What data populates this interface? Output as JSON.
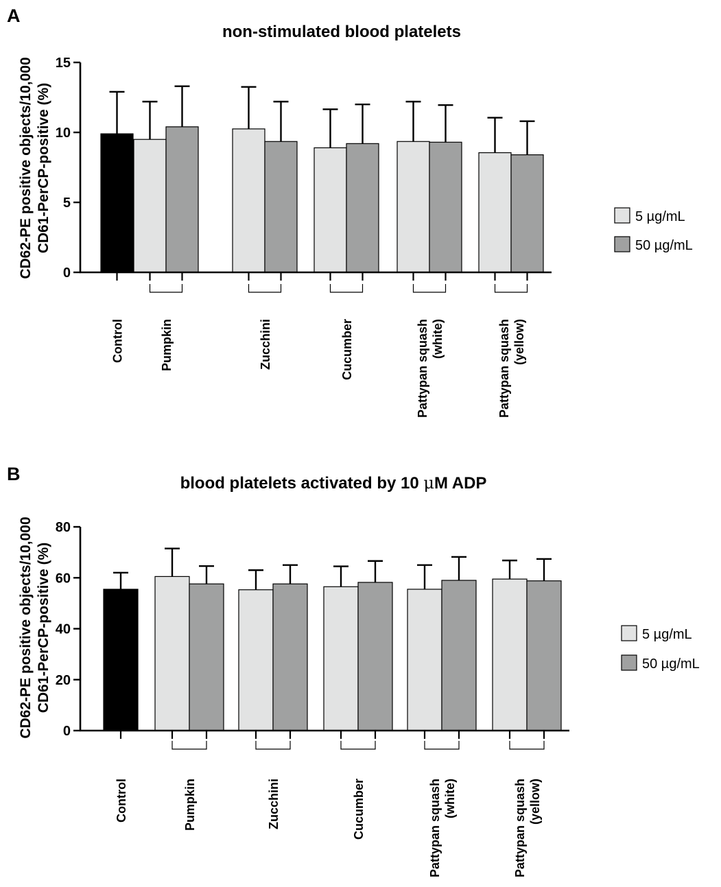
{
  "chart_data": [
    {
      "panel_label": "A",
      "type": "bar",
      "title": "non-stimulated blood platelets",
      "ylabel_line1": "CD62-PE positive objects/10,000",
      "ylabel_line2": "CD61-PerCP-positive (%)",
      "ylim": [
        0,
        15
      ],
      "yticks": [
        0,
        5,
        10,
        15
      ],
      "control": {
        "label": "Control",
        "value": 9.9,
        "error": 3.0,
        "color": "#000000"
      },
      "categories": [
        {
          "line1": "Pumpkin",
          "line2": ""
        },
        {
          "line1": "Zucchini",
          "line2": ""
        },
        {
          "line1": "Cucumber",
          "line2": ""
        },
        {
          "line1": "Pattypan squash",
          "line2": "(white)"
        },
        {
          "line1": "Pattypan squash",
          "line2": "(yellow)"
        }
      ],
      "series": [
        {
          "name": "5 µg/mL",
          "color": "#e2e3e3",
          "values": [
            9.5,
            10.25,
            8.9,
            9.35,
            8.55
          ],
          "errors": [
            2.7,
            3.0,
            2.75,
            2.85,
            2.5
          ]
        },
        {
          "name": "50 µg/mL",
          "color": "#a0a1a1",
          "values": [
            10.4,
            9.35,
            9.2,
            9.3,
            8.4
          ],
          "errors": [
            2.9,
            2.85,
            2.8,
            2.65,
            2.4
          ]
        }
      ],
      "legend": "right",
      "grid": false
    },
    {
      "panel_label": "B",
      "type": "bar",
      "title_pre": "blood platelets activated by 10 ",
      "title_mu": "μ",
      "title_post": "M ADP",
      "ylabel_line1": "CD62-PE positive objects/10,000",
      "ylabel_line2": "CD61-PerCP-positive (%)",
      "ylim": [
        0,
        80
      ],
      "yticks": [
        0,
        20,
        40,
        60,
        80
      ],
      "control": {
        "label": "Control",
        "value": 55.5,
        "error": 6.5,
        "color": "#000000"
      },
      "categories": [
        {
          "line1": "Pumpkin",
          "line2": ""
        },
        {
          "line1": "Zucchini",
          "line2": ""
        },
        {
          "line1": "Cucumber",
          "line2": ""
        },
        {
          "line1": "Pattypan squash",
          "line2": "(white)"
        },
        {
          "line1": "Pattypan squash",
          "line2": "(yellow)"
        }
      ],
      "series": [
        {
          "name": "5 µg/mL",
          "color": "#e2e3e3",
          "values": [
            60.5,
            55.3,
            56.5,
            55.5,
            59.5
          ],
          "errors": [
            11.0,
            7.7,
            8.0,
            9.5,
            7.3
          ]
        },
        {
          "name": "50 µg/mL",
          "color": "#a0a1a1",
          "values": [
            57.6,
            57.6,
            58.2,
            59.0,
            58.8
          ],
          "errors": [
            7.0,
            7.4,
            8.4,
            9.2,
            8.6
          ]
        }
      ],
      "legend": "right",
      "grid": false
    }
  ]
}
